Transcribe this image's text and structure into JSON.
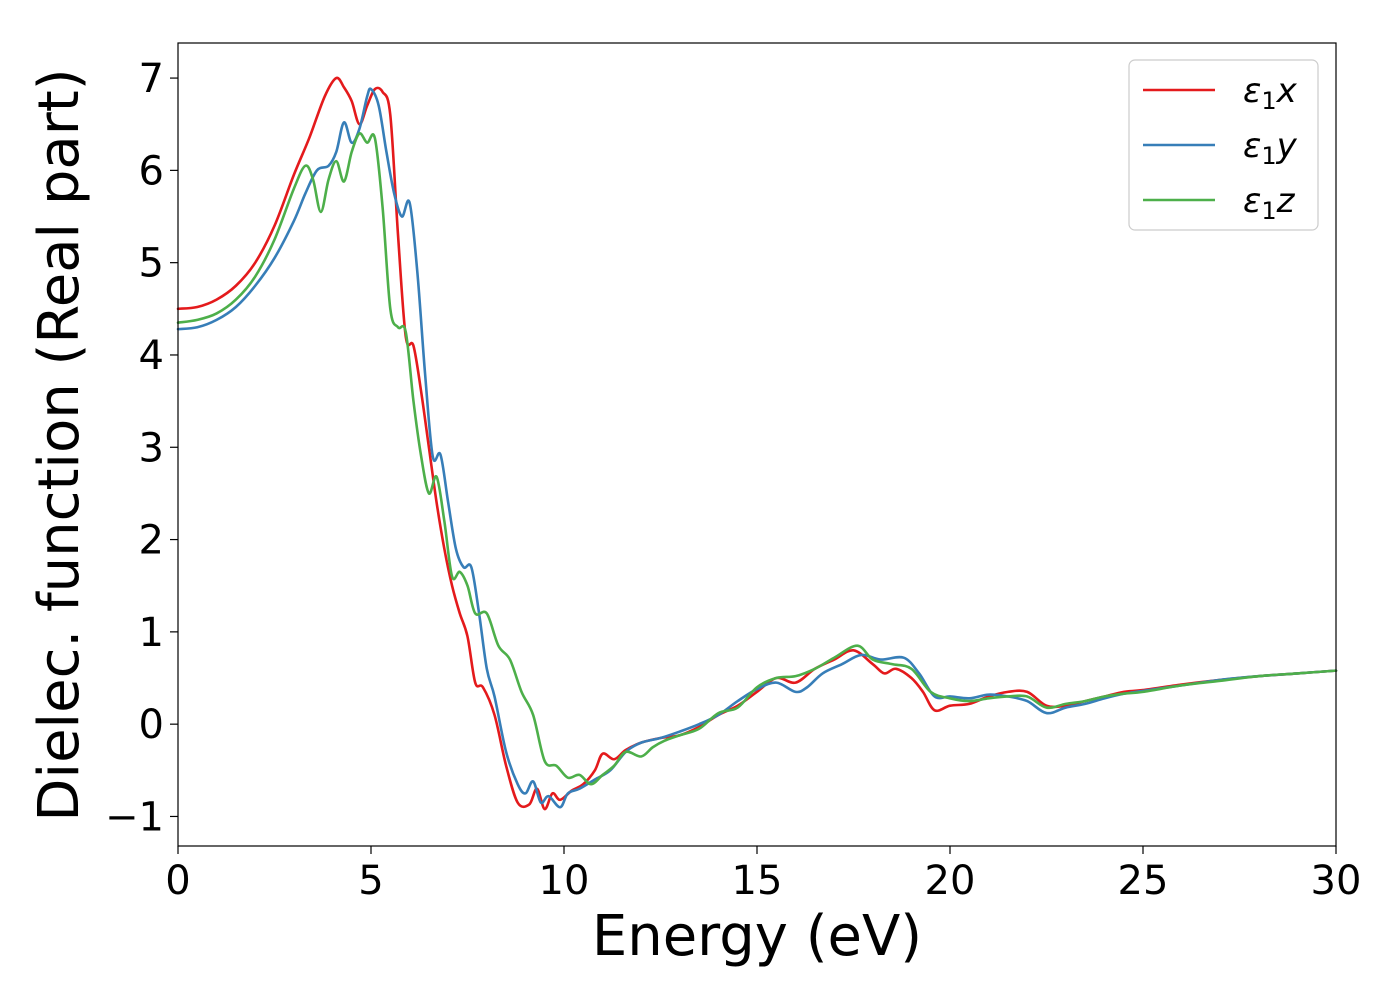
{
  "chart_data": {
    "type": "line",
    "xlabel": "Energy (eV)",
    "ylabel": "Dielec. function (Real part)",
    "xlim": [
      0,
      30
    ],
    "ylim": [
      -1.32,
      7.38
    ],
    "xticks": [
      0,
      5,
      10,
      15,
      20,
      25,
      30
    ],
    "xtick_labels": [
      "0",
      "5",
      "10",
      "15",
      "20",
      "25",
      "30"
    ],
    "yticks": [
      -1,
      0,
      1,
      2,
      3,
      4,
      5,
      6,
      7
    ],
    "ytick_labels": [
      "−1",
      "0",
      "1",
      "2",
      "3",
      "4",
      "5",
      "6",
      "7"
    ],
    "grid": false,
    "legend_position": "top-right",
    "series": [
      {
        "name": "ε₁x",
        "legend_base": "ε",
        "legend_sub": "1",
        "legend_tail": "x",
        "color": "#e41a1c",
        "points": [
          [
            0,
            4.5
          ],
          [
            0.5,
            4.52
          ],
          [
            1,
            4.6
          ],
          [
            1.5,
            4.75
          ],
          [
            2,
            5.0
          ],
          [
            2.5,
            5.4
          ],
          [
            3,
            5.95
          ],
          [
            3.4,
            6.35
          ],
          [
            3.8,
            6.8
          ],
          [
            4.1,
            7.0
          ],
          [
            4.3,
            6.9
          ],
          [
            4.5,
            6.75
          ],
          [
            4.7,
            6.5
          ],
          [
            4.9,
            6.7
          ],
          [
            5.1,
            6.88
          ],
          [
            5.3,
            6.85
          ],
          [
            5.5,
            6.6
          ],
          [
            5.7,
            5.3
          ],
          [
            5.9,
            4.2
          ],
          [
            6.1,
            4.1
          ],
          [
            6.3,
            3.6
          ],
          [
            6.5,
            3.0
          ],
          [
            6.7,
            2.4
          ],
          [
            6.9,
            1.9
          ],
          [
            7.1,
            1.5
          ],
          [
            7.3,
            1.2
          ],
          [
            7.5,
            0.95
          ],
          [
            7.7,
            0.45
          ],
          [
            7.9,
            0.4
          ],
          [
            8.2,
            0.1
          ],
          [
            8.5,
            -0.45
          ],
          [
            8.8,
            -0.85
          ],
          [
            9.1,
            -0.87
          ],
          [
            9.3,
            -0.7
          ],
          [
            9.5,
            -0.92
          ],
          [
            9.7,
            -0.75
          ],
          [
            9.9,
            -0.82
          ],
          [
            10.2,
            -0.72
          ],
          [
            10.5,
            -0.65
          ],
          [
            10.8,
            -0.5
          ],
          [
            11.0,
            -0.32
          ],
          [
            11.3,
            -0.38
          ],
          [
            11.6,
            -0.28
          ],
          [
            12,
            -0.2
          ],
          [
            12.5,
            -0.15
          ],
          [
            13,
            -0.12
          ],
          [
            13.5,
            -0.03
          ],
          [
            14,
            0.1
          ],
          [
            14.5,
            0.2
          ],
          [
            15,
            0.35
          ],
          [
            15.5,
            0.5
          ],
          [
            16,
            0.45
          ],
          [
            16.5,
            0.6
          ],
          [
            17,
            0.7
          ],
          [
            17.5,
            0.8
          ],
          [
            18,
            0.65
          ],
          [
            18.3,
            0.55
          ],
          [
            18.6,
            0.6
          ],
          [
            19,
            0.5
          ],
          [
            19.3,
            0.35
          ],
          [
            19.6,
            0.15
          ],
          [
            20,
            0.2
          ],
          [
            20.5,
            0.22
          ],
          [
            21,
            0.3
          ],
          [
            21.5,
            0.35
          ],
          [
            22,
            0.35
          ],
          [
            22.5,
            0.2
          ],
          [
            23,
            0.2
          ],
          [
            23.5,
            0.25
          ],
          [
            24,
            0.3
          ],
          [
            24.5,
            0.35
          ],
          [
            25,
            0.37
          ],
          [
            26,
            0.43
          ],
          [
            27,
            0.48
          ],
          [
            28,
            0.52
          ],
          [
            29,
            0.55
          ],
          [
            30,
            0.58
          ]
        ]
      },
      {
        "name": "ε₁y",
        "legend_base": "ε",
        "legend_sub": "1",
        "legend_tail": "y",
        "color": "#377eb8",
        "points": [
          [
            0,
            4.28
          ],
          [
            0.5,
            4.3
          ],
          [
            1,
            4.38
          ],
          [
            1.5,
            4.52
          ],
          [
            2,
            4.75
          ],
          [
            2.5,
            5.05
          ],
          [
            3,
            5.45
          ],
          [
            3.3,
            5.75
          ],
          [
            3.6,
            6.0
          ],
          [
            3.9,
            6.05
          ],
          [
            4.1,
            6.2
          ],
          [
            4.3,
            6.52
          ],
          [
            4.5,
            6.3
          ],
          [
            4.7,
            6.45
          ],
          [
            4.9,
            6.8
          ],
          [
            5.0,
            6.88
          ],
          [
            5.2,
            6.7
          ],
          [
            5.4,
            6.2
          ],
          [
            5.6,
            5.75
          ],
          [
            5.8,
            5.5
          ],
          [
            6.0,
            5.65
          ],
          [
            6.2,
            4.9
          ],
          [
            6.4,
            3.8
          ],
          [
            6.6,
            2.9
          ],
          [
            6.8,
            2.92
          ],
          [
            7.0,
            2.4
          ],
          [
            7.2,
            1.9
          ],
          [
            7.4,
            1.7
          ],
          [
            7.6,
            1.7
          ],
          [
            7.8,
            1.2
          ],
          [
            8.0,
            0.6
          ],
          [
            8.2,
            0.3
          ],
          [
            8.5,
            -0.3
          ],
          [
            8.8,
            -0.65
          ],
          [
            9.0,
            -0.75
          ],
          [
            9.2,
            -0.62
          ],
          [
            9.4,
            -0.85
          ],
          [
            9.6,
            -0.78
          ],
          [
            9.9,
            -0.9
          ],
          [
            10.1,
            -0.75
          ],
          [
            10.4,
            -0.7
          ],
          [
            10.8,
            -0.6
          ],
          [
            11.2,
            -0.5
          ],
          [
            11.6,
            -0.3
          ],
          [
            12,
            -0.2
          ],
          [
            12.5,
            -0.15
          ],
          [
            13,
            -0.08
          ],
          [
            13.5,
            0.0
          ],
          [
            14,
            0.1
          ],
          [
            14.5,
            0.25
          ],
          [
            15,
            0.38
          ],
          [
            15.5,
            0.45
          ],
          [
            16,
            0.35
          ],
          [
            16.3,
            0.4
          ],
          [
            16.7,
            0.55
          ],
          [
            17.2,
            0.65
          ],
          [
            17.7,
            0.75
          ],
          [
            18.2,
            0.7
          ],
          [
            18.8,
            0.72
          ],
          [
            19.2,
            0.55
          ],
          [
            19.6,
            0.3
          ],
          [
            20,
            0.3
          ],
          [
            20.5,
            0.28
          ],
          [
            21,
            0.32
          ],
          [
            21.5,
            0.3
          ],
          [
            22,
            0.25
          ],
          [
            22.5,
            0.12
          ],
          [
            23,
            0.18
          ],
          [
            23.5,
            0.22
          ],
          [
            24,
            0.28
          ],
          [
            24.5,
            0.33
          ],
          [
            25,
            0.36
          ],
          [
            26,
            0.42
          ],
          [
            27,
            0.48
          ],
          [
            28,
            0.52
          ],
          [
            29,
            0.55
          ],
          [
            30,
            0.58
          ]
        ]
      },
      {
        "name": "ε₁z",
        "legend_base": "ε",
        "legend_sub": "1",
        "legend_tail": "z",
        "color": "#4daf4a",
        "points": [
          [
            0,
            4.35
          ],
          [
            0.5,
            4.38
          ],
          [
            1,
            4.45
          ],
          [
            1.5,
            4.6
          ],
          [
            2,
            4.85
          ],
          [
            2.5,
            5.25
          ],
          [
            3,
            5.8
          ],
          [
            3.3,
            6.05
          ],
          [
            3.5,
            5.9
          ],
          [
            3.7,
            5.55
          ],
          [
            3.9,
            5.9
          ],
          [
            4.1,
            6.1
          ],
          [
            4.3,
            5.88
          ],
          [
            4.5,
            6.2
          ],
          [
            4.7,
            6.4
          ],
          [
            4.9,
            6.3
          ],
          [
            5.1,
            6.35
          ],
          [
            5.3,
            5.6
          ],
          [
            5.5,
            4.5
          ],
          [
            5.7,
            4.3
          ],
          [
            5.9,
            4.25
          ],
          [
            6.1,
            3.5
          ],
          [
            6.3,
            2.9
          ],
          [
            6.5,
            2.5
          ],
          [
            6.7,
            2.68
          ],
          [
            6.9,
            2.2
          ],
          [
            7.1,
            1.6
          ],
          [
            7.3,
            1.65
          ],
          [
            7.5,
            1.5
          ],
          [
            7.7,
            1.2
          ],
          [
            8.0,
            1.2
          ],
          [
            8.3,
            0.85
          ],
          [
            8.6,
            0.7
          ],
          [
            8.9,
            0.35
          ],
          [
            9.2,
            0.1
          ],
          [
            9.5,
            -0.4
          ],
          [
            9.8,
            -0.45
          ],
          [
            10.1,
            -0.58
          ],
          [
            10.4,
            -0.55
          ],
          [
            10.7,
            -0.65
          ],
          [
            11.0,
            -0.55
          ],
          [
            11.3,
            -0.45
          ],
          [
            11.6,
            -0.3
          ],
          [
            12,
            -0.35
          ],
          [
            12.3,
            -0.25
          ],
          [
            12.6,
            -0.18
          ],
          [
            13,
            -0.12
          ],
          [
            13.5,
            -0.05
          ],
          [
            14,
            0.12
          ],
          [
            14.5,
            0.18
          ],
          [
            15,
            0.4
          ],
          [
            15.5,
            0.5
          ],
          [
            16,
            0.52
          ],
          [
            16.5,
            0.6
          ],
          [
            17,
            0.72
          ],
          [
            17.6,
            0.85
          ],
          [
            18,
            0.7
          ],
          [
            18.5,
            0.65
          ],
          [
            19,
            0.6
          ],
          [
            19.5,
            0.35
          ],
          [
            20,
            0.28
          ],
          [
            20.5,
            0.25
          ],
          [
            21,
            0.28
          ],
          [
            21.5,
            0.3
          ],
          [
            22,
            0.3
          ],
          [
            22.5,
            0.18
          ],
          [
            23,
            0.22
          ],
          [
            23.5,
            0.25
          ],
          [
            24,
            0.3
          ],
          [
            24.5,
            0.33
          ],
          [
            25,
            0.35
          ],
          [
            26,
            0.42
          ],
          [
            27,
            0.47
          ],
          [
            28,
            0.52
          ],
          [
            29,
            0.55
          ],
          [
            30,
            0.58
          ]
        ]
      }
    ]
  }
}
